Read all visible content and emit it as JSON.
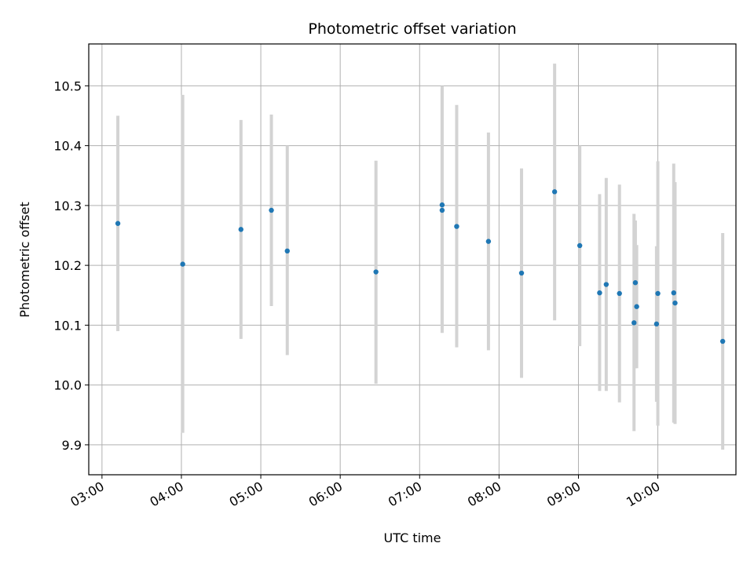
{
  "chart_data": {
    "type": "scatter",
    "title": "Photometric offset variation",
    "xlabel": "UTC time",
    "ylabel": "Photometric offset",
    "x_unit": "time (HH:MM)",
    "xlim": [
      "02:50",
      "10:59"
    ],
    "ylim": [
      9.85,
      10.57
    ],
    "xticks": [
      "03:00",
      "04:00",
      "05:00",
      "06:00",
      "07:00",
      "08:00",
      "09:00",
      "10:00"
    ],
    "yticks": [
      9.9,
      10.0,
      10.1,
      10.2,
      10.3,
      10.4,
      10.5
    ],
    "grid": true,
    "marker_color": "#1f77b4",
    "errorbar_color": "#d3d3d3",
    "points": [
      {
        "x": "03:12",
        "y": 10.27,
        "ylow": 10.09,
        "yhigh": 10.45
      },
      {
        "x": "04:01",
        "y": 10.202,
        "ylow": 9.92,
        "yhigh": 10.485
      },
      {
        "x": "04:45",
        "y": 10.26,
        "ylow": 10.077,
        "yhigh": 10.443
      },
      {
        "x": "05:08",
        "y": 10.292,
        "ylow": 10.132,
        "yhigh": 10.452
      },
      {
        "x": "05:20",
        "y": 10.224,
        "ylow": 10.05,
        "yhigh": 10.4
      },
      {
        "x": "06:27",
        "y": 10.189,
        "ylow": 10.002,
        "yhigh": 10.375
      },
      {
        "x": "07:17",
        "y": 10.301,
        "ylow": 10.087,
        "yhigh": 10.5
      },
      {
        "x": "07:17",
        "y": 10.292,
        "ylow": 10.1,
        "yhigh": 10.495
      },
      {
        "x": "07:28",
        "y": 10.265,
        "ylow": 10.063,
        "yhigh": 10.468
      },
      {
        "x": "07:52",
        "y": 10.24,
        "ylow": 10.058,
        "yhigh": 10.422
      },
      {
        "x": "08:17",
        "y": 10.187,
        "ylow": 10.012,
        "yhigh": 10.362
      },
      {
        "x": "08:42",
        "y": 10.323,
        "ylow": 10.108,
        "yhigh": 10.537
      },
      {
        "x": "09:01",
        "y": 10.233,
        "ylow": 10.065,
        "yhigh": 10.4
      },
      {
        "x": "09:16",
        "y": 10.154,
        "ylow": 9.99,
        "yhigh": 10.319
      },
      {
        "x": "09:21",
        "y": 10.168,
        "ylow": 9.99,
        "yhigh": 10.346
      },
      {
        "x": "09:31",
        "y": 10.153,
        "ylow": 9.971,
        "yhigh": 10.335
      },
      {
        "x": "09:42",
        "y": 10.104,
        "ylow": 9.923,
        "yhigh": 10.286
      },
      {
        "x": "09:43",
        "y": 10.171,
        "ylow": 10.028,
        "yhigh": 10.275
      },
      {
        "x": "09:44",
        "y": 10.131,
        "ylow": 10.028,
        "yhigh": 10.234
      },
      {
        "x": "09:59",
        "y": 10.102,
        "ylow": 9.972,
        "yhigh": 10.232
      },
      {
        "x": "10:00",
        "y": 10.153,
        "ylow": 9.932,
        "yhigh": 10.374
      },
      {
        "x": "10:12",
        "y": 10.154,
        "ylow": 9.937,
        "yhigh": 10.37
      },
      {
        "x": "10:13",
        "y": 10.137,
        "ylow": 9.935,
        "yhigh": 10.339
      },
      {
        "x": "10:49",
        "y": 10.073,
        "ylow": 9.892,
        "yhigh": 10.254
      }
    ]
  }
}
